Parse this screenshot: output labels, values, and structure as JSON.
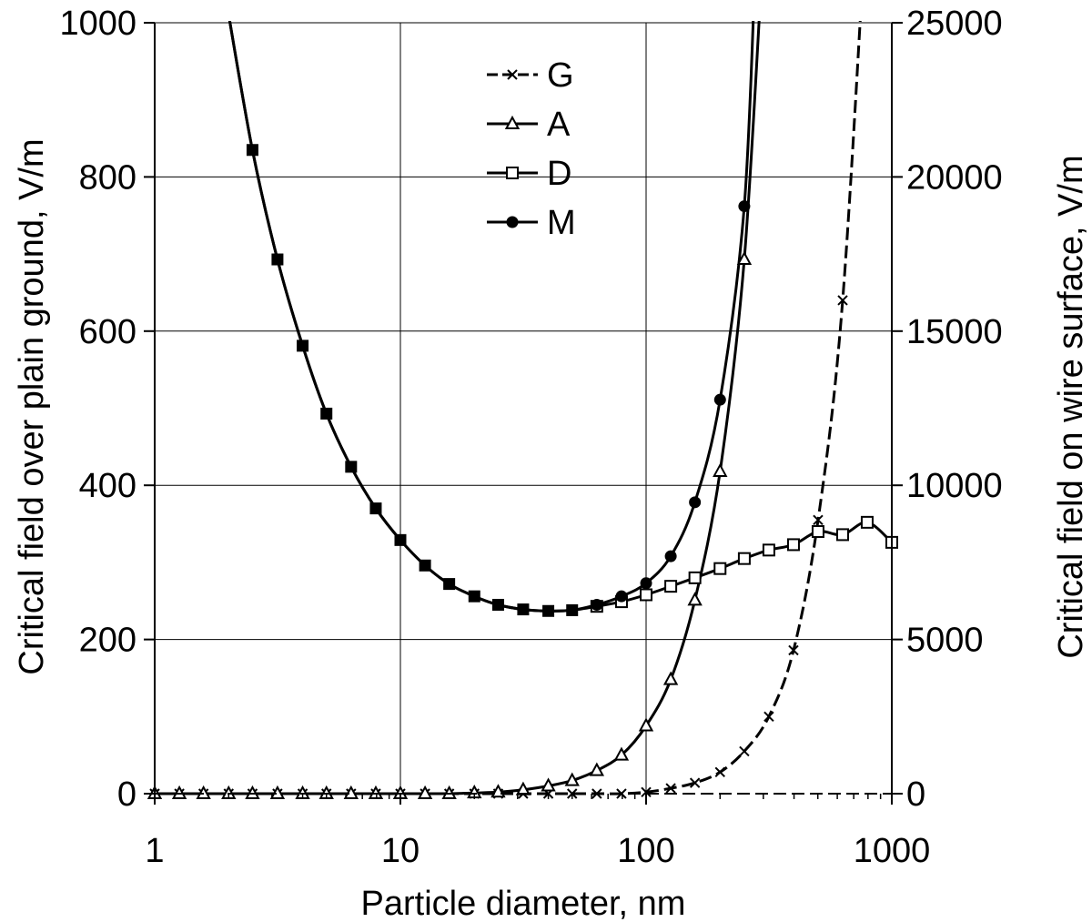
{
  "chart_data": {
    "type": "line",
    "xlabel": "Particle diameter, nm",
    "ylabel": "Critical field over plain ground, V/m",
    "y2label": "Critical field on wire surface, V/m",
    "xscale": "log",
    "xlim": [
      1,
      1000
    ],
    "ylim": [
      0,
      1000
    ],
    "y2lim": [
      0,
      25000
    ],
    "xticks": [
      1,
      10,
      100,
      1000
    ],
    "xtick_labels": [
      "1",
      "10",
      "100",
      "1000"
    ],
    "yticks": [
      0,
      200,
      400,
      600,
      800,
      1000
    ],
    "ytick_labels": [
      "0",
      "200",
      "400",
      "600",
      "800",
      "1000"
    ],
    "y2ticks": [
      0,
      5000,
      10000,
      15000,
      20000,
      25000
    ],
    "y2tick_labels": [
      "0",
      "5000",
      "10000",
      "15000",
      "20000",
      "25000"
    ],
    "grid": true,
    "legend_position": "top-center",
    "series": [
      {
        "name": "G",
        "marker": "x",
        "x": [
          1,
          1.26,
          1.58,
          2,
          2.5,
          3.16,
          4,
          5,
          6.3,
          7.94,
          10,
          12.6,
          15.8,
          20,
          25,
          31.6,
          40,
          50,
          63,
          79.4,
          100,
          126,
          158,
          200,
          251,
          316,
          398,
          501,
          631
        ],
        "y": [
          0,
          0,
          0,
          0,
          0,
          0,
          0,
          0,
          0,
          0,
          0,
          0,
          0,
          0,
          0,
          0,
          0,
          0,
          0,
          0,
          2,
          7,
          14,
          28,
          55,
          100,
          186,
          355,
          640
        ]
      },
      {
        "name": "A",
        "marker": "triangle",
        "x": [
          1,
          1.26,
          1.58,
          2,
          2.5,
          3.16,
          4,
          5,
          6.3,
          7.94,
          10,
          12.6,
          15.8,
          20,
          25,
          31.6,
          40,
          50,
          63,
          79.4,
          100,
          126,
          158,
          200,
          251
        ],
        "y": [
          0,
          0,
          0,
          0,
          0,
          0,
          0,
          0,
          0,
          0,
          0,
          0,
          0,
          1,
          2,
          5,
          10,
          17,
          30,
          50,
          88,
          148,
          251,
          418,
          693
        ]
      },
      {
        "name": "D",
        "marker": "square",
        "x": [
          2.5,
          3.16,
          4,
          5,
          6.3,
          7.94,
          10,
          12.6,
          15.8,
          20,
          25,
          31.6,
          40,
          50,
          63,
          79.4,
          100,
          126,
          158,
          200,
          251,
          316,
          398,
          501,
          631,
          794,
          1000
        ],
        "y": [
          835,
          693,
          581,
          493,
          424,
          370,
          329,
          296,
          272,
          256,
          245,
          239,
          237,
          238,
          243,
          249,
          258,
          269,
          280,
          292,
          305,
          316,
          323,
          340,
          336,
          352,
          326
        ]
      },
      {
        "name": "M",
        "marker": "circle",
        "x": [
          2.5,
          3.16,
          4,
          5,
          6.3,
          7.94,
          10,
          12.6,
          15.8,
          20,
          25,
          31.6,
          40,
          50,
          63,
          79.4,
          100,
          126,
          158,
          200,
          251
        ],
        "y": [
          835,
          693,
          581,
          493,
          424,
          370,
          329,
          296,
          272,
          256,
          245,
          239,
          237,
          238,
          245,
          256,
          273,
          308,
          378,
          511,
          762
        ]
      }
    ]
  }
}
